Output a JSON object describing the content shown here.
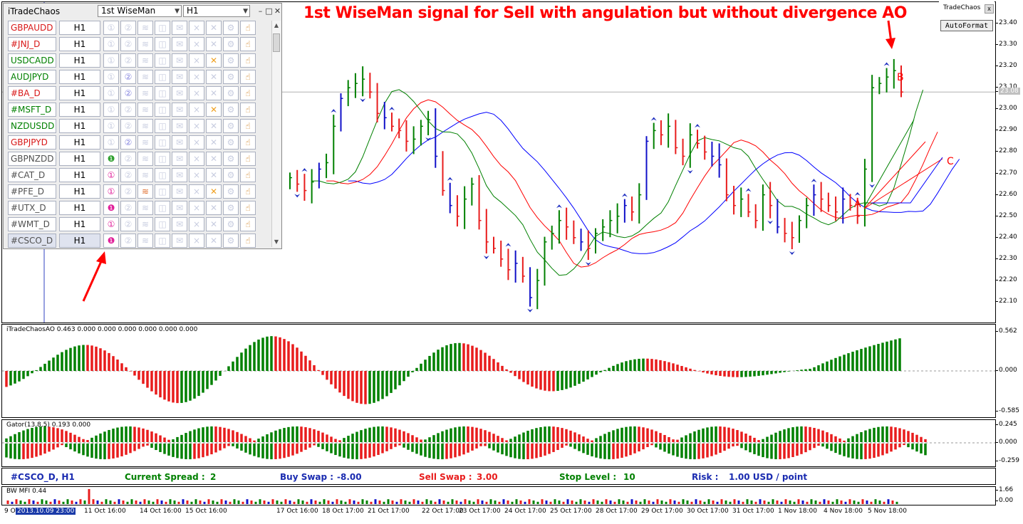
{
  "headline": "1st WiseMan signal for Sell with angulation but without divergence AO",
  "panel": {
    "title": "iTradeChaos",
    "signal_select": "1st WiseMan",
    "timeframe_select": "H1",
    "rows": [
      {
        "symbol": "GBPAUDD",
        "color": "#d81818",
        "tf": "H1",
        "icons": [
          "①",
          "②",
          "≋",
          "◫",
          "✉",
          "×",
          "✕",
          "⚙",
          "☝"
        ],
        "active": [
          0,
          0,
          0,
          0,
          0,
          0,
          0,
          0,
          1
        ]
      },
      {
        "symbol": "#JNJ_D",
        "color": "#d81818",
        "tf": "H1",
        "icons": [
          "①",
          "②",
          "≋",
          "◫",
          "✉",
          "×",
          "✕",
          "⚙",
          "☝"
        ],
        "active": [
          0,
          0,
          0,
          0,
          0,
          0,
          0,
          0,
          1
        ]
      },
      {
        "symbol": "USDCADD",
        "color": "#008000",
        "tf": "H1",
        "icons": [
          "①",
          "②",
          "≋",
          "◫",
          "✉",
          "×",
          "✕",
          "⚙",
          "☝"
        ],
        "active": [
          0,
          0,
          0,
          0,
          0,
          0,
          1,
          0,
          1
        ]
      },
      {
        "symbol": "AUDJPYD",
        "color": "#008000",
        "tf": "H1",
        "icons": [
          "①",
          "②",
          "≋",
          "◫",
          "✉",
          "×",
          "✕",
          "⚙",
          "☝"
        ],
        "active": [
          0,
          1,
          0,
          0,
          0,
          0,
          0,
          0,
          1
        ]
      },
      {
        "symbol": "#BA_D",
        "color": "#d81818",
        "tf": "H1",
        "icons": [
          "①",
          "②",
          "≋",
          "◫",
          "✉",
          "×",
          "✕",
          "⚙",
          "☝"
        ],
        "active": [
          0,
          1,
          0,
          0,
          0,
          0,
          0,
          0,
          1
        ]
      },
      {
        "symbol": "#MSFT_D",
        "color": "#008000",
        "tf": "H1",
        "icons": [
          "①",
          "②",
          "≋",
          "◫",
          "✉",
          "×",
          "✕",
          "⚙",
          "☝"
        ],
        "active": [
          0,
          0,
          0,
          0,
          0,
          0,
          1,
          0,
          1
        ]
      },
      {
        "symbol": "NZDUSDD",
        "color": "#008000",
        "tf": "H1",
        "icons": [
          "①",
          "②",
          "≋",
          "◫",
          "✉",
          "×",
          "✕",
          "⚙",
          "☝"
        ],
        "active": [
          0,
          0,
          0,
          0,
          0,
          0,
          0,
          0,
          1
        ]
      },
      {
        "symbol": "GBPJPYD",
        "color": "#d81818",
        "tf": "H1",
        "icons": [
          "①",
          "②",
          "≋",
          "◫",
          "✉",
          "×",
          "✕",
          "⚙",
          "☝"
        ],
        "active": [
          0,
          1,
          0,
          0,
          0,
          0,
          0,
          0,
          1
        ]
      },
      {
        "symbol": "GBPNZDD",
        "color": "#505050",
        "tf": "H1",
        "icons": [
          "❶",
          "②",
          "≋",
          "◫",
          "✉",
          "×",
          "✕",
          "⚙",
          "☝"
        ],
        "active": [
          1,
          0,
          0,
          0,
          0,
          0,
          0,
          0,
          1
        ]
      },
      {
        "symbol": "#CAT_D",
        "color": "#505050",
        "tf": "H1",
        "icons": [
          "①",
          "②",
          "≋",
          "◫",
          "✉",
          "×",
          "✕",
          "⚙",
          "☝"
        ],
        "active": [
          1,
          0,
          0,
          0,
          0,
          0,
          0,
          0,
          1
        ]
      },
      {
        "symbol": "#PFE_D",
        "color": "#505050",
        "tf": "H1",
        "icons": [
          "①",
          "②",
          "≋",
          "◫",
          "✉",
          "×",
          "✕",
          "⚙",
          "☝"
        ],
        "active": [
          1,
          0,
          1,
          0,
          0,
          0,
          1,
          0,
          1
        ]
      },
      {
        "symbol": "#UTX_D",
        "color": "#505050",
        "tf": "H1",
        "icons": [
          "❶",
          "②",
          "≋",
          "◫",
          "✉",
          "×",
          "✕",
          "⚙",
          "☝"
        ],
        "active": [
          1,
          0,
          0,
          0,
          0,
          0,
          0,
          0,
          1
        ]
      },
      {
        "symbol": "#WMT_D",
        "color": "#505050",
        "tf": "H1",
        "icons": [
          "①",
          "②",
          "≋",
          "◫",
          "✉",
          "×",
          "✕",
          "⚙",
          "☝"
        ],
        "active": [
          1,
          0,
          0,
          0,
          0,
          0,
          0,
          0,
          1
        ]
      },
      {
        "symbol": "#CSCO_D",
        "color": "#505050",
        "tf": "H1",
        "icons": [
          "❶",
          "②",
          "≋",
          "◫",
          "✉",
          "×",
          "✕",
          "⚙",
          "☝"
        ],
        "active": [
          1,
          0,
          0,
          0,
          0,
          0,
          0,
          0,
          1
        ],
        "selected": true
      }
    ]
  },
  "tradechaos_box": {
    "name": "TradeChaos",
    "close": "x",
    "button": "AutoFormat"
  },
  "info_bar": {
    "symbol": "#CSCO_D, H1",
    "spread_label": "Current Spread :",
    "spread_value": "2",
    "buy_swap_label": "Buy Swap :",
    "buy_swap_value": "-8.00",
    "sell_swap_label": "Sell Swap :",
    "sell_swap_value": "3.00",
    "stop_label": "Stop Level :",
    "stop_value": "10",
    "risk_label": "Risk :",
    "risk_value": "1.00 USD / point"
  },
  "colors": {
    "bull": "#008000",
    "bear": "#e81c1c",
    "fractal": "#1010c8",
    "jaw": "#0000ff",
    "teeth": "#ff0000",
    "lips": "#008000",
    "annotation": "#ff0000"
  },
  "chart_data": [
    {
      "name": "price",
      "type": "bar",
      "ylim": [
        22.05,
        23.45
      ],
      "yticks": [
        "23.40",
        "23.30",
        "23.20",
        "23.10",
        "23.00",
        "22.90",
        "22.80",
        "22.70",
        "22.60",
        "22.50",
        "22.40",
        "22.30",
        "22.20",
        "22.10"
      ],
      "last_price": "23.08",
      "x_labels": [
        "9 Oct 2013",
        "2013.10.09 23:00",
        "11 Oct 16:00",
        "14 Oct 16:00",
        "15 Oct 16:00",
        "17 Oct 16:00",
        "18 Oct 17:00",
        "21 Oct 17:00",
        "22 Oct 17:00",
        "23 Oct 17:00",
        "24 Oct 17:00",
        "25 Oct 17:00",
        "28 Oct 17:00",
        "29 Oct 17:00",
        "30 Oct 17:00",
        "31 Oct 17:00",
        "1 Nov 18:00",
        "4 Nov 18:00",
        "5 Nov 18:00"
      ],
      "wave_labels": [
        "A",
        "B",
        "C"
      ],
      "close": [
        22.68,
        22.65,
        22.62,
        22.66,
        22.72,
        22.75,
        22.92,
        23.05,
        23.1,
        23.12,
        23.14,
        23.08,
        22.98,
        22.96,
        22.92,
        22.9,
        22.85,
        22.86,
        22.92,
        22.95,
        22.78,
        22.62,
        22.55,
        22.5,
        22.58,
        22.65,
        22.48,
        22.38,
        22.35,
        22.3,
        22.25,
        22.28,
        22.22,
        22.12,
        22.2,
        22.38,
        22.42,
        22.48,
        22.45,
        22.4,
        22.38,
        22.35,
        22.42,
        22.45,
        22.48,
        22.5,
        22.55,
        22.52,
        22.6,
        22.85,
        22.9,
        22.88,
        22.92,
        22.82,
        22.78,
        22.88,
        22.84,
        22.8,
        22.78,
        22.74,
        22.6,
        22.55,
        22.58,
        22.52,
        22.48,
        22.6,
        22.55,
        22.45,
        22.42,
        22.4,
        22.48,
        22.55,
        22.6,
        22.58,
        22.55,
        22.52,
        22.58,
        22.55,
        22.5,
        22.72,
        23.1,
        23.12,
        23.15,
        23.18,
        23.08
      ]
    },
    {
      "name": "iTradeChaosAO",
      "type": "bar",
      "label": "iTradeChaosAO 0.463 0.000 0.000 0.000 0.000 0.000 0.000",
      "ylim": [
        -0.62,
        0.6
      ],
      "yticks": [
        "0.562",
        "0.000",
        "-0.585"
      ]
    },
    {
      "name": "Gator",
      "type": "bar",
      "label": "Gator(13,8,5) 0.193 0.000",
      "ylim": [
        -0.28,
        0.26
      ],
      "yticks": [
        "0.245",
        "0.000",
        "-0.259"
      ]
    },
    {
      "name": "BW MFI",
      "type": "bar",
      "label": "BW MFI 0.44",
      "yticks": [
        "1.66",
        "0.00"
      ]
    }
  ]
}
